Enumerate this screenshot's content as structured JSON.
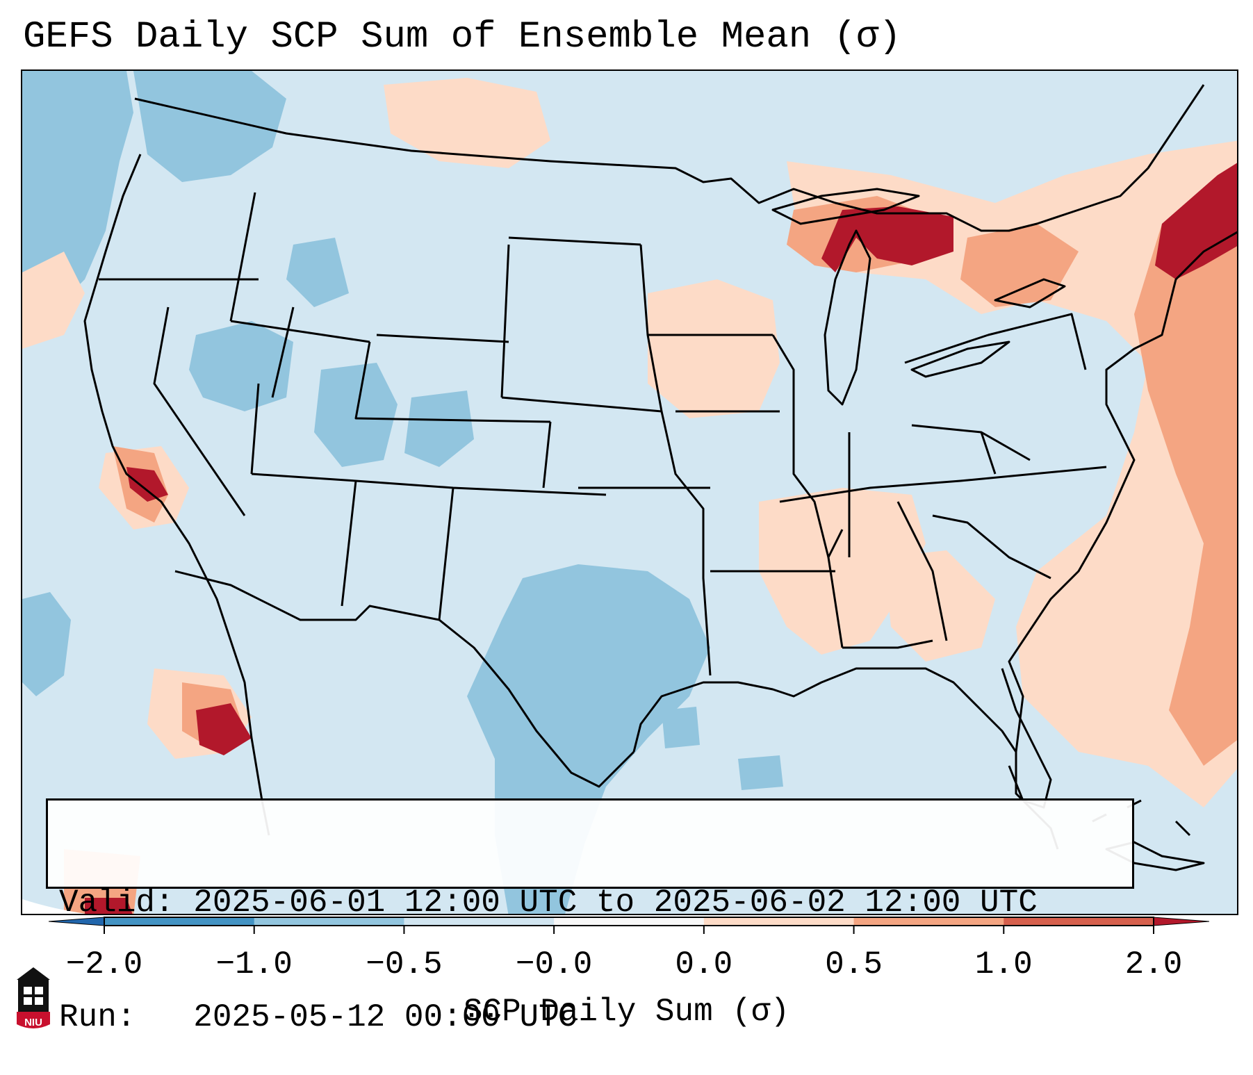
{
  "title": "GEFS Daily SCP Sum of Ensemble Mean (σ)",
  "info": {
    "valid_line": "Valid: 2025-06-01 12:00 UTC to 2025-06-02 12:00 UTC",
    "run_line": "Run:   2025-05-12 00:00 UTC"
  },
  "colorbar": {
    "label": "SCP Daily Sum (σ)",
    "ticks": [
      "−2.0",
      "−1.0",
      "−0.5",
      "−0.0",
      "0.0",
      "0.5",
      "1.0",
      "2.0"
    ],
    "colors": [
      "#4393c3",
      "#92c5de",
      "#d1e5f0",
      "#f7f7f7",
      "#fddbc7",
      "#f4a582",
      "#d6604d"
    ],
    "extend_low_color": "#2166ac",
    "extend_high_color": "#b2182b"
  },
  "map": {
    "region": "CONUS",
    "background_color": "#d1e5f0",
    "outside_domain_color": "#ffffff",
    "border_color": "#000000",
    "anomaly_regions": [
      {
        "area": "Upper Michigan / northern Lake Michigan",
        "level": "high"
      },
      {
        "area": "New England / Maine",
        "level": "high"
      },
      {
        "area": "Southern California coast",
        "level": "high"
      },
      {
        "area": "Baja California",
        "level": "high"
      },
      {
        "area": "Iowa / Midwest",
        "level": "slightly-positive"
      },
      {
        "area": "Tennessee / Alabama / Georgia",
        "level": "slightly-positive"
      },
      {
        "area": "Western Atlantic",
        "level": "moderate-positive"
      },
      {
        "area": "West Texas / New Mexico",
        "level": "negative"
      },
      {
        "area": "Utah / Nevada",
        "level": "negative"
      },
      {
        "area": "Pacific Northwest / Pacific",
        "level": "negative"
      }
    ]
  },
  "logo": {
    "text": "NIU",
    "name": "niu-logo-icon"
  }
}
